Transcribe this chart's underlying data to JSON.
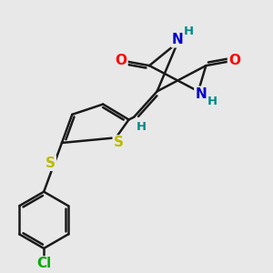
{
  "background_color": "#e8e8e8",
  "bond_color": "#1a1a1a",
  "bond_width": 1.8,
  "atom_colors": {
    "O": "#ff0000",
    "N": "#0000cc",
    "S": "#bbbb00",
    "Cl": "#00aa00",
    "H": "#008888",
    "C": "#1a1a1a"
  },
  "font_size_atom": 11,
  "font_size_h": 9.5,
  "fig_w": 3.0,
  "fig_h": 3.0,
  "dpi": 100
}
